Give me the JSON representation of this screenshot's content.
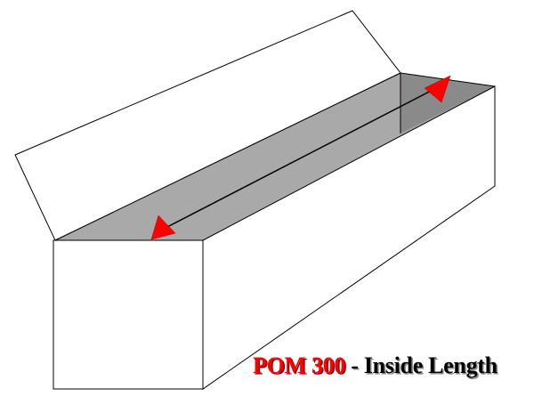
{
  "caption": {
    "product": "POM 300",
    "separator": " - ",
    "title": "Inside Length"
  },
  "colors": {
    "product_text": "#ff0000",
    "caption_text": "#000000",
    "interior_floor": "#a9a9a9",
    "interior_back_wall": "#8a8a8a",
    "arrowhead": "#ff0000",
    "outline": "#000000",
    "box_face": "#ffffff"
  },
  "diagram": {
    "subject": "open-box",
    "measurement": "inside-length",
    "arrow_style": "double-headed"
  }
}
